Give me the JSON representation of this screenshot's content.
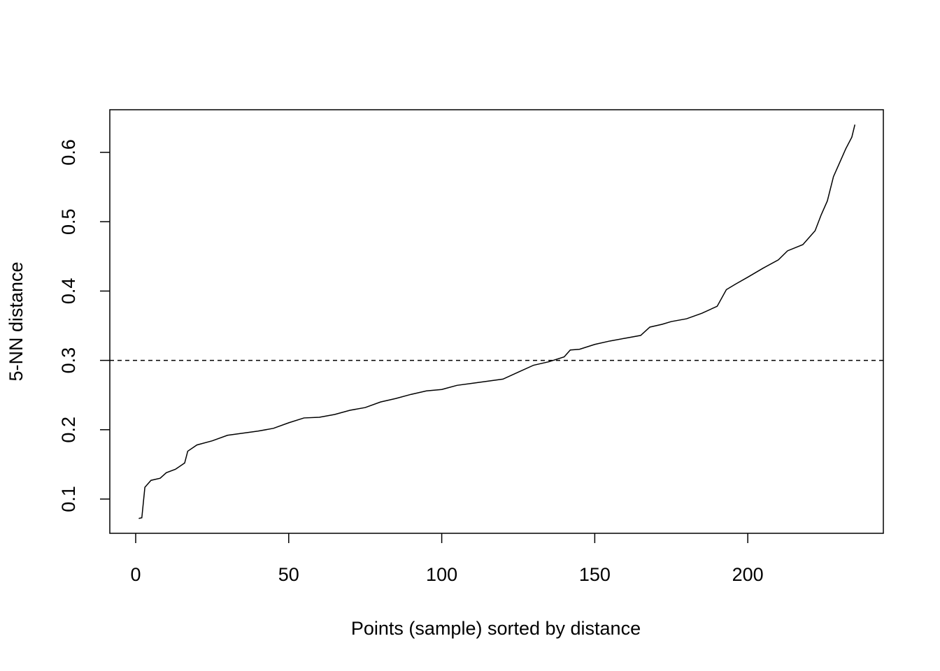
{
  "chart_data": {
    "type": "line",
    "xlabel": "Points (sample) sorted by distance",
    "ylabel": "5-NN distance",
    "x": [
      1,
      2,
      3,
      5,
      8,
      10,
      13,
      16,
      17,
      20,
      25,
      30,
      35,
      40,
      45,
      50,
      55,
      60,
      65,
      70,
      75,
      80,
      85,
      90,
      95,
      100,
      105,
      110,
      115,
      120,
      125,
      130,
      135,
      140,
      142,
      145,
      150,
      155,
      160,
      165,
      168,
      172,
      175,
      180,
      185,
      190,
      193,
      196,
      200,
      205,
      210,
      213,
      218,
      222,
      224,
      226,
      228,
      230,
      232,
      234,
      235
    ],
    "y": [
      0.072,
      0.073,
      0.117,
      0.127,
      0.13,
      0.138,
      0.143,
      0.152,
      0.169,
      0.178,
      0.184,
      0.192,
      0.195,
      0.198,
      0.202,
      0.21,
      0.217,
      0.218,
      0.222,
      0.228,
      0.232,
      0.24,
      0.245,
      0.251,
      0.256,
      0.258,
      0.264,
      0.267,
      0.27,
      0.273,
      0.283,
      0.293,
      0.298,
      0.305,
      0.315,
      0.316,
      0.323,
      0.328,
      0.332,
      0.336,
      0.348,
      0.352,
      0.356,
      0.36,
      0.368,
      0.378,
      0.402,
      0.41,
      0.42,
      0.433,
      0.445,
      0.458,
      0.467,
      0.487,
      0.51,
      0.53,
      0.565,
      0.585,
      0.605,
      0.622,
      0.64
    ],
    "color": "#000000",
    "hline": 0.3,
    "xlim": [
      -8.46,
      244.3
    ],
    "ylim": [
      0.0506,
      0.6615
    ],
    "xticks": [
      0,
      50,
      100,
      150,
      200
    ],
    "yticks": [
      0.1,
      0.2,
      0.3,
      0.4,
      0.5,
      0.6
    ]
  }
}
